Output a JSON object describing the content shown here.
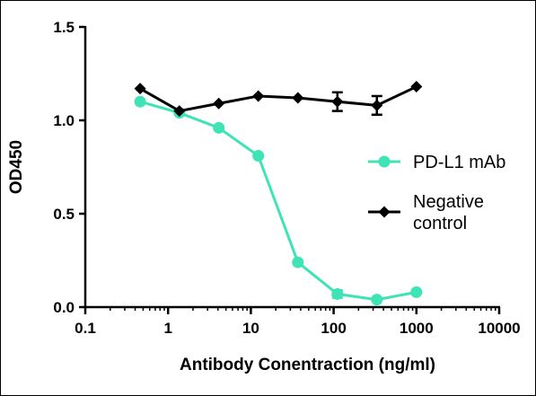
{
  "chart_data": {
    "type": "line",
    "xlabel": "Antibody Conentraction (ng/ml)",
    "ylabel": "OD450",
    "xscale": "log",
    "xlim": [
      0.1,
      10000
    ],
    "ylim": [
      0,
      1.5
    ],
    "xticks": [
      "0.1",
      "1",
      "10",
      "100",
      "1000",
      "10000"
    ],
    "yticks": [
      "0.0",
      "0.5",
      "1.0",
      "1.5"
    ],
    "grid": false,
    "legend_position": "right",
    "series": [
      {
        "name": "PD-L1  mAb",
        "color": "#3ee3b6",
        "marker": "circle",
        "x": [
          0.46,
          1.37,
          4.1,
          12.3,
          37,
          111,
          333,
          1000
        ],
        "y": [
          1.1,
          1.04,
          0.96,
          0.81,
          0.24,
          0.07,
          0.04,
          0.08
        ],
        "err": [
          0,
          0,
          0,
          0,
          0,
          0.02,
          0,
          0
        ]
      },
      {
        "name": "Negative control",
        "name_lines": [
          "Negative",
          "control"
        ],
        "color": "#000000",
        "marker": "diamond",
        "x": [
          0.46,
          1.37,
          4.1,
          12.3,
          37,
          111,
          333,
          1000
        ],
        "y": [
          1.17,
          1.05,
          1.09,
          1.13,
          1.12,
          1.1,
          1.08,
          1.18
        ],
        "err": [
          0,
          0,
          0,
          0,
          0,
          0.05,
          0.05,
          0
        ]
      }
    ]
  }
}
